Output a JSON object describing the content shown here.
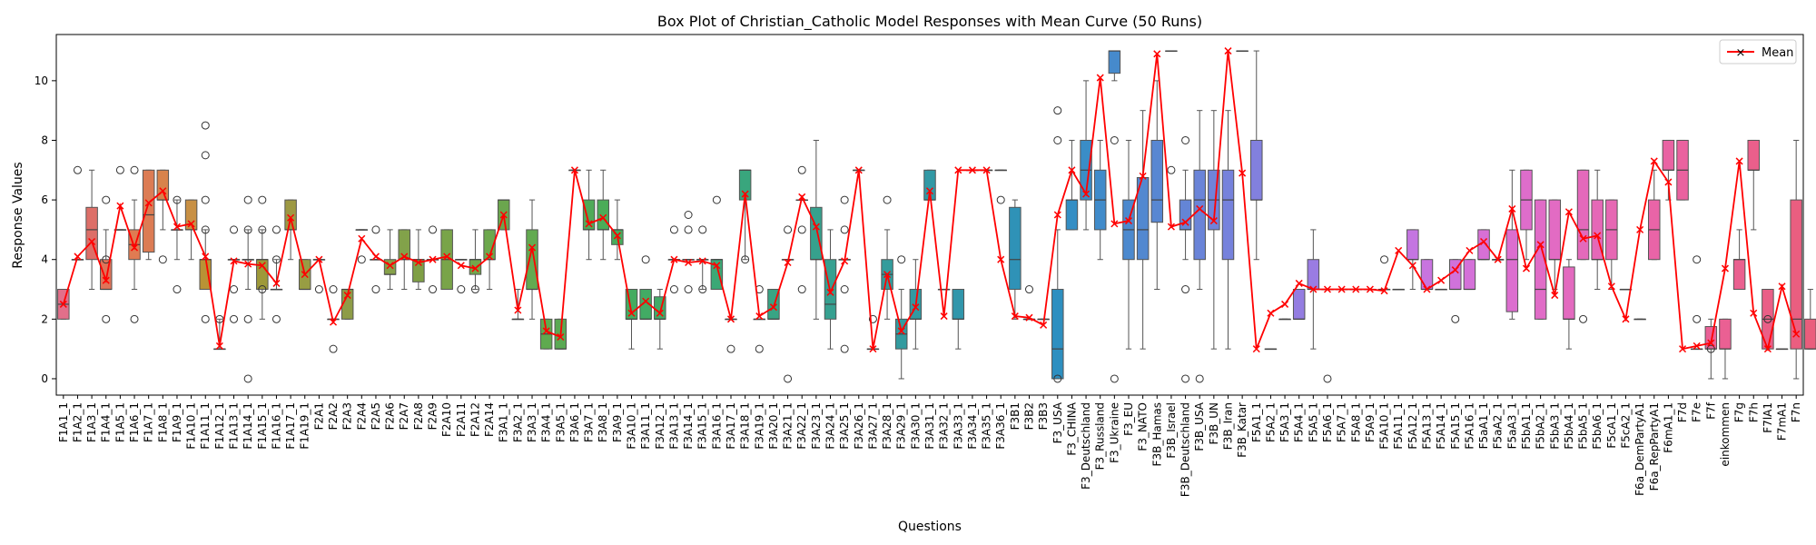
{
  "chart_data": {
    "type": "box",
    "title": "Box Plot of Christian_Catholic Model Responses with Mean Curve (50 Runs)",
    "xlabel": "Questions",
    "ylabel": "Response Values",
    "ylim": [
      -0.55,
      11.55
    ],
    "yticks": [
      0,
      2,
      4,
      6,
      8,
      10
    ],
    "legend": {
      "label": "Mean",
      "placement": "top-right",
      "color": "#ff0000"
    },
    "grid": false,
    "categories": [
      "F1A1_1",
      "F1A2_1",
      "F1A3_1",
      "F1A4_1",
      "F1A5_1",
      "F1A6_1",
      "F1A7_1",
      "F1A8_1",
      "F1A9_1",
      "F1A10_1",
      "F1A11_1",
      "F1A12_1",
      "F1A13_1",
      "F1A14_1",
      "F1A15_1",
      "F1A16_1",
      "F1A17_1",
      "F1A19_1",
      "F2A1",
      "F2A2",
      "F2A3",
      "F2A4",
      "F2A5",
      "F2A6",
      "F2A7",
      "F2A8",
      "F2A9",
      "F2A10",
      "F2A11",
      "F2A12",
      "F2A14",
      "F3A1_1",
      "F3A2_1",
      "F3A3_1",
      "F3A4_1",
      "F3A5_1",
      "F3A6_1",
      "F3A7_1",
      "F3A8_1",
      "F3A9_1",
      "F3A10_1",
      "F3A11_1",
      "F3A12_1",
      "F3A13_1",
      "F3A14_1",
      "F3A15_1",
      "F3A16_1",
      "F3A17_1",
      "F3A18_1",
      "F3A19_1",
      "F3A20_1",
      "F3A21_1",
      "F3A22_1",
      "F3A23_1",
      "F3A24_1",
      "F3A25_1",
      "F3A26_1",
      "F3A27_1",
      "F3A28_1",
      "F3A29_1",
      "F3A30_1",
      "F3A31_1",
      "F3A32_1",
      "F3A33_1",
      "F3A34_1",
      "F3A35_1",
      "F3A36_1",
      "F3B1",
      "F3B2",
      "F3B3",
      "F3_USA",
      "F3_CHINA",
      "F3_Deutschland",
      "F3_Russland",
      "F3_Ukraine",
      "F3_EU",
      "F3_NATO",
      "F3B_Hamas",
      "F3B_Israel",
      "F3B_Deutschland",
      "F3B_USA",
      "F3B_UN",
      "F3B_Iran",
      "F3B_Katar",
      "F5A1_1",
      "F5A2_1",
      "F5A3_1",
      "F5A4_1",
      "F5A5_1",
      "F5A6_1",
      "F5A7_1",
      "F5A8_1",
      "F5A9_1",
      "F5A10_1",
      "F5A11_1",
      "F5A12_1",
      "F5A13_1",
      "F5A14_1",
      "F5A15_1",
      "F5A16_1",
      "F5aA1_1",
      "F5aA2_1",
      "F5aA3_1",
      "F5bA1_1",
      "F5bA2_1",
      "F5bA3_1",
      "F5bA4_1",
      "F5bA5_1",
      "F5bA6_1",
      "F5cA1_1",
      "F5cA2_1",
      "F6a_DemPartyA1",
      "F6a_RepPartyA1",
      "F6mA1_1",
      "F7d",
      "F7e",
      "F7f",
      "einkommen",
      "F7g",
      "F7h",
      "F7lA1",
      "F7mA1",
      "F7n"
    ],
    "boxes": [
      [
        2,
        2,
        2.5,
        3,
        3
      ],
      [
        4,
        4,
        4,
        4,
        4
      ],
      [
        3,
        4,
        5,
        5.75,
        7
      ],
      [
        3,
        3,
        3,
        4,
        5
      ],
      [
        5,
        5,
        5,
        5,
        5
      ],
      [
        3,
        4,
        4.5,
        5,
        6
      ],
      [
        4,
        4.25,
        5.5,
        7,
        7
      ],
      [
        5,
        6,
        6,
        7,
        7
      ],
      [
        4,
        5,
        5,
        5,
        6
      ],
      [
        4,
        5,
        5,
        6,
        6
      ],
      [
        3,
        3,
        4,
        4,
        5
      ],
      [
        1,
        1,
        1,
        1,
        2
      ],
      [
        4,
        4,
        4,
        4,
        4
      ],
      [
        3,
        4,
        4,
        4,
        5
      ],
      [
        2,
        3,
        4,
        4,
        5
      ],
      [
        3,
        3,
        3,
        3,
        4
      ],
      [
        4,
        5,
        5,
        6,
        6
      ],
      [
        3,
        3,
        3,
        4,
        4
      ],
      [
        4,
        4,
        4,
        4,
        4
      ],
      [
        2,
        2,
        2,
        2,
        2
      ],
      [
        2,
        2,
        3,
        3,
        3
      ],
      [
        5,
        5,
        5,
        5,
        5
      ],
      [
        4,
        4,
        4,
        4,
        4
      ],
      [
        3,
        3.5,
        3.5,
        4,
        5
      ],
      [
        3,
        4,
        4,
        5,
        5
      ],
      [
        3,
        3.25,
        4,
        4,
        5
      ],
      [
        4,
        4,
        4,
        4,
        4
      ],
      [
        3,
        3,
        4,
        5,
        5
      ],
      [
        4,
        4,
        4,
        4,
        4
      ],
      [
        3,
        3.5,
        4,
        4,
        5
      ],
      [
        3,
        4,
        4,
        5,
        5
      ],
      [
        5,
        5,
        6,
        6,
        6
      ],
      [
        2,
        2,
        2,
        2,
        3
      ],
      [
        2,
        3,
        3,
        5,
        6
      ],
      [
        1,
        1,
        1.5,
        2,
        2
      ],
      [
        1,
        1,
        1,
        2,
        2
      ],
      [
        7,
        7,
        7,
        7,
        7
      ],
      [
        4,
        5,
        5,
        6,
        7
      ],
      [
        4,
        5,
        5,
        6,
        7
      ],
      [
        4,
        4.5,
        5,
        5,
        6
      ],
      [
        1,
        2,
        2,
        3,
        3
      ],
      [
        2,
        2,
        2,
        3,
        3
      ],
      [
        1,
        2,
        2,
        2.75,
        3
      ],
      [
        4,
        4,
        4,
        4,
        4
      ],
      [
        4,
        4,
        4,
        4,
        4
      ],
      [
        3,
        4,
        4,
        4,
        4
      ],
      [
        3,
        3,
        4,
        4,
        4
      ],
      [
        2,
        2,
        2,
        2,
        2
      ],
      [
        4,
        6,
        7,
        7,
        7
      ],
      [
        2,
        2,
        2,
        2,
        2
      ],
      [
        2,
        2,
        2,
        3,
        3
      ],
      [
        4,
        4,
        4,
        4,
        4
      ],
      [
        6,
        6,
        6,
        6,
        6
      ],
      [
        2,
        4,
        4,
        5.75,
        8
      ],
      [
        1,
        2,
        2.5,
        4,
        5
      ],
      [
        4,
        4,
        4,
        4,
        4
      ],
      [
        7,
        7,
        7,
        7,
        7
      ],
      [
        1,
        1,
        1,
        1,
        1
      ],
      [
        2,
        3,
        3.5,
        4,
        5
      ],
      [
        0,
        1,
        1.5,
        2,
        3
      ],
      [
        1,
        2,
        2,
        3,
        4
      ],
      [
        6,
        6,
        6,
        7,
        7
      ],
      [
        3,
        3,
        3,
        3,
        3
      ],
      [
        1,
        2,
        2,
        3,
        3
      ],
      [
        7,
        7,
        7,
        7,
        7
      ],
      [
        7,
        7,
        7,
        7,
        7
      ],
      [
        7,
        7,
        7,
        7,
        7
      ],
      [
        2,
        3,
        4,
        5.75,
        6
      ],
      [
        2,
        2,
        2,
        2,
        2
      ],
      [
        2,
        2,
        2,
        2,
        2
      ],
      [
        0,
        0,
        1,
        3,
        5
      ],
      [
        5,
        5,
        6,
        6,
        8
      ],
      [
        5,
        6,
        7,
        8,
        10
      ],
      [
        4,
        5,
        6,
        7,
        8
      ],
      [
        10,
        10.25,
        11,
        11,
        11
      ],
      [
        1,
        4,
        5,
        6,
        8
      ],
      [
        1,
        4,
        5,
        6.75,
        9
      ],
      [
        3,
        5.25,
        6,
        8,
        10
      ],
      [
        11,
        11,
        11,
        11,
        11
      ],
      [
        4,
        5,
        5,
        6,
        7
      ],
      [
        3,
        4,
        6,
        7,
        9
      ],
      [
        1,
        5,
        6,
        7,
        9
      ],
      [
        1,
        4,
        6,
        7,
        9
      ],
      [
        11,
        11,
        11,
        11,
        11
      ],
      [
        4,
        6,
        6,
        8,
        11
      ],
      [
        1,
        1,
        1,
        1,
        1
      ],
      [
        2,
        2,
        2,
        2,
        2
      ],
      [
        2,
        2,
        2,
        3,
        3
      ],
      [
        1,
        3,
        3,
        4,
        5
      ],
      [
        3,
        3,
        3,
        3,
        3
      ],
      [
        3,
        3,
        3,
        3,
        3
      ],
      [
        3,
        3,
        3,
        3,
        3
      ],
      [
        3,
        3,
        3,
        3,
        3
      ],
      [
        3,
        3,
        3,
        3,
        3
      ],
      [
        3,
        3,
        3,
        3,
        3
      ],
      [
        3,
        4,
        4,
        5,
        5
      ],
      [
        3,
        3,
        3,
        4,
        4
      ],
      [
        3,
        3,
        3,
        3,
        3
      ],
      [
        3,
        3,
        3,
        4,
        4
      ],
      [
        3,
        3,
        3,
        4,
        4
      ],
      [
        4,
        4,
        4,
        5,
        5
      ],
      [
        4,
        4,
        4,
        4,
        4
      ],
      [
        2,
        2.25,
        4,
        5,
        7
      ],
      [
        4,
        5,
        6,
        7,
        7
      ],
      [
        2,
        2,
        3,
        6,
        6
      ],
      [
        3,
        4,
        4,
        6,
        6
      ],
      [
        1,
        2,
        2,
        3.75,
        4
      ],
      [
        4,
        4,
        5,
        7,
        7
      ],
      [
        3,
        4,
        4,
        6,
        7
      ],
      [
        3,
        4,
        5,
        6,
        6
      ],
      [
        3,
        3,
        3,
        3,
        3
      ],
      [
        2,
        2,
        2,
        2,
        2
      ],
      [
        4,
        4,
        5,
        6,
        7
      ],
      [
        6,
        7,
        7,
        8,
        8
      ],
      [
        6,
        6,
        7,
        8,
        8
      ],
      [
        1,
        1,
        1,
        1,
        1
      ],
      [
        0,
        1,
        1,
        1.75,
        2
      ],
      [
        0,
        1,
        1,
        2,
        2
      ],
      [
        3,
        3,
        4,
        4,
        5
      ],
      [
        5,
        7,
        7,
        8,
        8
      ],
      [
        1,
        1,
        2,
        3,
        3
      ],
      [
        1,
        1,
        1,
        1,
        1
      ],
      [
        0,
        1,
        2,
        6,
        8
      ],
      [
        1,
        1,
        1,
        2,
        3
      ]
    ],
    "fliers": [
      [],
      [
        7
      ],
      [],
      [
        2,
        4,
        6
      ],
      [
        7
      ],
      [
        2,
        7
      ],
      [],
      [
        4
      ],
      [
        3,
        6
      ],
      [],
      [
        2,
        5,
        6,
        7.5,
        8.5
      ],
      [
        2
      ],
      [
        2,
        3,
        5
      ],
      [
        0,
        2,
        5,
        6
      ],
      [
        3,
        5,
        6
      ],
      [
        2,
        4,
        5
      ],
      [],
      [],
      [
        3
      ],
      [
        1,
        3
      ],
      [],
      [
        4
      ],
      [
        3,
        5
      ],
      [],
      [],
      [],
      [
        3,
        5
      ],
      [],
      [
        3
      ],
      [
        3
      ],
      [],
      [],
      [],
      [],
      [],
      [],
      [],
      [],
      [],
      [],
      [],
      [
        4
      ],
      [],
      [
        3,
        5
      ],
      [
        3,
        5,
        5.5
      ],
      [
        3,
        5
      ],
      [
        6
      ],
      [
        1
      ],
      [
        4
      ],
      [
        1,
        3
      ],
      [],
      [
        0,
        5
      ],
      [
        3,
        5,
        7
      ],
      [],
      [],
      [
        1,
        3,
        5,
        6
      ],
      [],
      [
        2
      ],
      [
        6
      ],
      [
        4
      ],
      [],
      [],
      [],
      [],
      [],
      [],
      [
        6
      ],
      [],
      [
        3
      ],
      [],
      [
        0,
        8,
        9
      ],
      [],
      [],
      [],
      [
        0,
        8
      ],
      [],
      [],
      [],
      [
        7
      ],
      [
        0,
        3,
        8
      ],
      [
        0
      ],
      [],
      [],
      [],
      [],
      [],
      [],
      [],
      [],
      [
        0
      ],
      [],
      [],
      [],
      [
        4
      ],
      [],
      [],
      [],
      [],
      [
        2
      ],
      [],
      [],
      [],
      [],
      [],
      [],
      [],
      [],
      [
        2
      ],
      [],
      [],
      [],
      [],
      [],
      [],
      [],
      [
        2,
        4
      ],
      [
        1
      ],
      [],
      [],
      [],
      [
        2
      ],
      [],
      [],
      [],
      [],
      [],
      [],
      [],
      [
        4.3,
        5.5
      ]
    ],
    "means": [
      2.5,
      4.1,
      4.6,
      3.3,
      5.8,
      4.4,
      5.9,
      6.3,
      5.1,
      5.2,
      4.1,
      1.1,
      3.95,
      3.85,
      3.8,
      3.2,
      5.4,
      3.5,
      4.0,
      1.9,
      2.8,
      4.7,
      4.1,
      3.8,
      4.1,
      3.9,
      4.0,
      4.1,
      3.8,
      3.7,
      4.1,
      5.5,
      2.3,
      4.4,
      1.6,
      1.4,
      7.0,
      5.2,
      5.4,
      4.8,
      2.2,
      2.6,
      2.2,
      4.0,
      3.9,
      3.95,
      3.8,
      2.0,
      6.2,
      2.1,
      2.4,
      3.9,
      6.1,
      5.1,
      2.9,
      3.95,
      7.0,
      1.0,
      3.5,
      1.6,
      2.4,
      6.3,
      2.1,
      7.0,
      7.0,
      7.0,
      4.0,
      2.1,
      2.05,
      1.8,
      5.5,
      7.0,
      6.2,
      10.1,
      5.2,
      5.3,
      6.8,
      10.9,
      5.1,
      5.25,
      5.7,
      5.3,
      11.0,
      6.9,
      1.0,
      2.2,
      2.5,
      3.2,
      3.0,
      3.0,
      3.0,
      3.0,
      3.0,
      2.95,
      4.3,
      3.8,
      3.0,
      3.3,
      3.65,
      4.3,
      4.6,
      4.0,
      5.7,
      3.7,
      4.5,
      2.8,
      5.6,
      4.7,
      4.8,
      3.1,
      2.0,
      5.0,
      7.3,
      6.6,
      1.0,
      1.1,
      1.2,
      3.7,
      7.3,
      2.2,
      1.0,
      3.1,
      1.5
    ],
    "colors": [
      "#e26f8a",
      "#e27372",
      "#dd6f68",
      "#df7359",
      "#dd7651",
      "#df7b52",
      "#dc7c54",
      "#d8834c",
      "#d48746",
      "#c89044",
      "#b99235",
      "#ad9445",
      "#aa963b",
      "#a19a3d",
      "#9e9939",
      "#a19c40",
      "#9d9943",
      "#989d43",
      "#939d47",
      "#929a42",
      "#8e9c47",
      "#8ba043",
      "#89a146",
      "#86a14a",
      "#82a24a",
      "#7f9f45",
      "#7ba248",
      "#79a449",
      "#75a74c",
      "#72a74b",
      "#6da84d",
      "#6ba64e",
      "#68a84e",
      "#63aa51",
      "#5faa4f",
      "#5aa953",
      "#55ab55",
      "#4faa58",
      "#4bac58",
      "#47ab5c",
      "#44ab60",
      "#42ab64",
      "#41ab68",
      "#3faa6b",
      "#3eaa6f",
      "#3ca973",
      "#3ba876",
      "#3aa77a",
      "#39a67d",
      "#38a580",
      "#38a484",
      "#37a387",
      "#37a28a",
      "#36a18d",
      "#36a090",
      "#359f93",
      "#349e96",
      "#349d99",
      "#339c9c",
      "#339b9f",
      "#329aa2",
      "#3299a5",
      "#3198a8",
      "#3196ab",
      "#3095ae",
      "#3094b1",
      "#2f93b4",
      "#2f92b7",
      "#2e91ba",
      "#2e90bd",
      "#2e8fc0",
      "#348ec4",
      "#3a8dc7",
      "#408bca",
      "#468acc",
      "#4c89ce",
      "#5288d0",
      "#5887d2",
      "#5e86d4",
      "#6485d6",
      "#6a84d8",
      "#7083da",
      "#7682dc",
      "#7c81dd",
      "#8280de",
      "#887fdf",
      "#8e7ee0",
      "#947de1",
      "#9a7ce2",
      "#a07be3",
      "#a67ae4",
      "#ac79e4",
      "#b278e4",
      "#b877e3",
      "#be76e2",
      "#c475e1",
      "#c874df",
      "#cc73dd",
      "#d072db",
      "#d471d8",
      "#d770d5",
      "#da6fd2",
      "#dc6ecf",
      "#de6dcb",
      "#e06cc7",
      "#e26bc3",
      "#e36abf",
      "#e469bb",
      "#e568b7",
      "#e667b3",
      "#e766af",
      "#e865ab",
      "#e964a7",
      "#e963a3",
      "#ea629f",
      "#ea619b",
      "#ea6197",
      "#ea6093",
      "#ea608f",
      "#ea5f8b",
      "#ea5f87",
      "#ea5e83",
      "#ea5e80",
      "#ea5d7c"
    ]
  }
}
